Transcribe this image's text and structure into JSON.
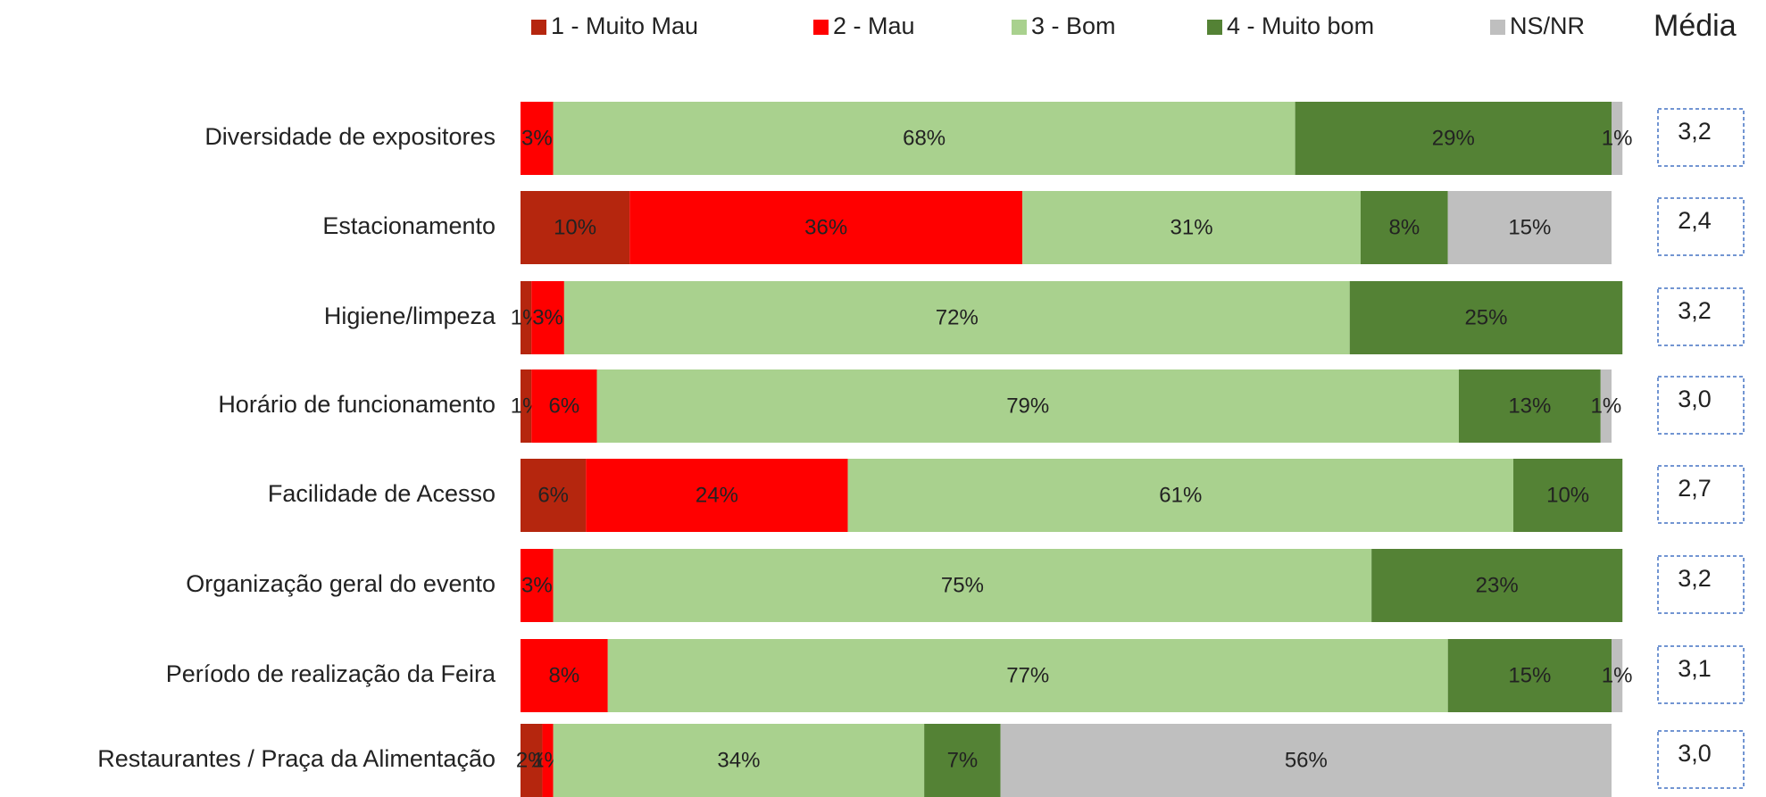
{
  "chart_data": {
    "type": "stacked-bar-horizontal",
    "categories": [
      "Diversidade de expositores",
      "Estacionamento",
      "Higiene/limpeza",
      "Horário de funcionamento",
      "Facilidade de Acesso",
      "Organização geral do evento",
      "Período de realização da Feira",
      "Restaurantes / Praça da Alimentação"
    ],
    "xlim": [
      0,
      100
    ],
    "series": [
      {
        "name": "1 - Muito Mau",
        "color": "#b5260e",
        "values": [
          null,
          10,
          1,
          1,
          6,
          null,
          null,
          2
        ],
        "value_labels": [
          null,
          "10%",
          "1%",
          "1%",
          "6%",
          null,
          null,
          "2%"
        ]
      },
      {
        "name": "2 - Mau",
        "color": "#ff0000",
        "values": [
          3,
          36,
          3,
          6,
          24,
          3,
          8,
          1
        ],
        "value_labels": [
          "3%",
          "36%",
          "3%",
          "6%",
          "24%",
          "3%",
          "8%",
          "1%"
        ]
      },
      {
        "name": "3 - Bom",
        "color": "#a9d18e",
        "values": [
          68,
          31,
          72,
          79,
          61,
          75,
          77,
          34
        ],
        "value_labels": [
          "68%",
          "31%",
          "72%",
          "79%",
          "61%",
          "75%",
          "77%",
          "34%"
        ]
      },
      {
        "name": "4 - Muito bom",
        "color": "#548235",
        "values": [
          29,
          8,
          25,
          13,
          10,
          23,
          15,
          7
        ],
        "value_labels": [
          "29%",
          "8%",
          "25%",
          "13%",
          "10%",
          "23%",
          "15%",
          "7%"
        ]
      },
      {
        "name": "NS/NR",
        "color": "#bfbfbf",
        "values": [
          1,
          15,
          null,
          1,
          null,
          null,
          1,
          56
        ],
        "value_labels": [
          "1%",
          "15%",
          null,
          "1%",
          null,
          null,
          "1%",
          "56%"
        ]
      }
    ],
    "media": {
      "title": "Média",
      "values": [
        3.2,
        2.4,
        3.2,
        3.0,
        2.7,
        3.2,
        3.1,
        3.0
      ],
      "value_labels": [
        "3,2",
        "2,4",
        "3,2",
        "3,0",
        "2,7",
        "3,2",
        "3,1",
        "3,0"
      ]
    }
  }
}
